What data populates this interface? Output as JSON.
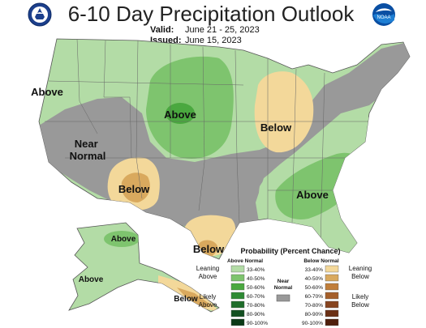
{
  "header": {
    "title": "6-10 Day Precipitation Outlook",
    "valid_label": "Valid:",
    "valid_value": "June 21 - 25, 2023",
    "issued_label": "Issued:",
    "issued_value": "June 15, 2023"
  },
  "logos": {
    "left_icon": "doc-seal-icon",
    "right_icon": "noaa-logo-icon",
    "noaa_text": "NOAA"
  },
  "map": {
    "region_labels": {
      "above_west": "Above",
      "near_normal": "Near\nNormal",
      "above_plains": "Above",
      "below_lakes": "Below",
      "below_southwest": "Below",
      "above_southeast": "Above",
      "below_texas": "Below",
      "above_alaska_north": "Above",
      "above_alaska_west": "Above",
      "below_alaska_southeast": "Below"
    },
    "colors": {
      "near_normal": "#999999",
      "above_33_40": "#b3dca6",
      "above_40_50": "#7ec46e",
      "above_50_60": "#4aa83f",
      "above_60_70": "#2e8a34",
      "above_70_80": "#1f6d2a",
      "above_80_90": "#135021",
      "above_90_100": "#0b3a17",
      "below_33_40": "#f3d89a",
      "below_40_50": "#d9a95e",
      "below_50_60": "#c07e3a",
      "below_60_70": "#a55f2a",
      "below_70_80": "#87441f",
      "below_80_90": "#6b3015",
      "below_90_100": "#4f1f0c"
    }
  },
  "legend": {
    "title": "Probability (Percent Chance)",
    "above_header": "Above Normal",
    "below_header": "Below Normal",
    "near_normal_label": "Near\nNormal",
    "leaning_above": "Leaning\nAbove",
    "likely_above": "Likely\nAbove",
    "leaning_below": "Leaning\nBelow",
    "likely_below": "Likely\nBelow",
    "ranges": [
      "33-40%",
      "40-50%",
      "50-60%",
      "60-70%",
      "70-80%",
      "80-90%",
      "90-100%"
    ]
  }
}
